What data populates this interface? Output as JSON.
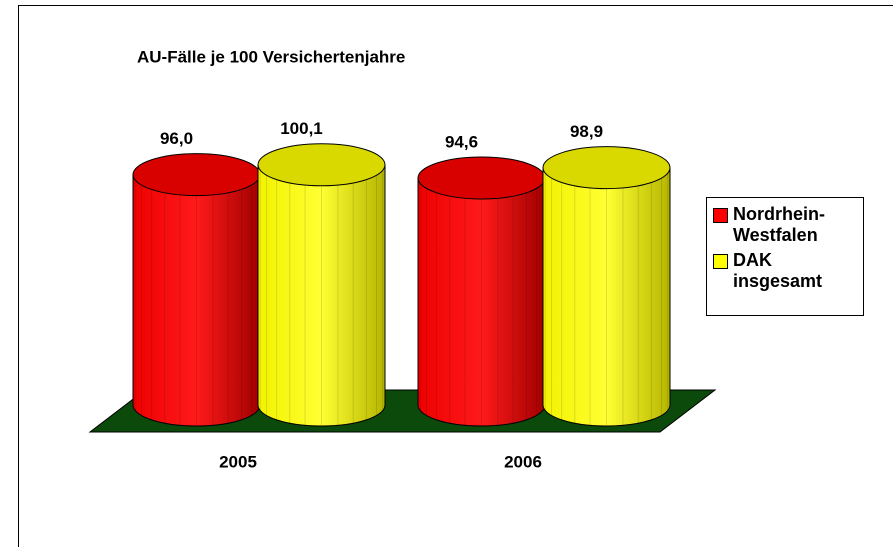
{
  "chart_data": {
    "type": "bar",
    "title": "AU-Fälle je 100 Versichertenjahre",
    "categories": [
      "2005",
      "2006"
    ],
    "series": [
      {
        "name": "Nordrhein-Westfalen",
        "color": "#ff0000",
        "values": [
          96.0,
          94.6
        ],
        "value_labels": [
          "96,0",
          "94,6"
        ]
      },
      {
        "name": "DAK insgesamt",
        "color": "#ffff00",
        "values": [
          100.1,
          98.9
        ],
        "value_labels": [
          "100,1",
          "98,9"
        ]
      }
    ],
    "legend": "right"
  }
}
